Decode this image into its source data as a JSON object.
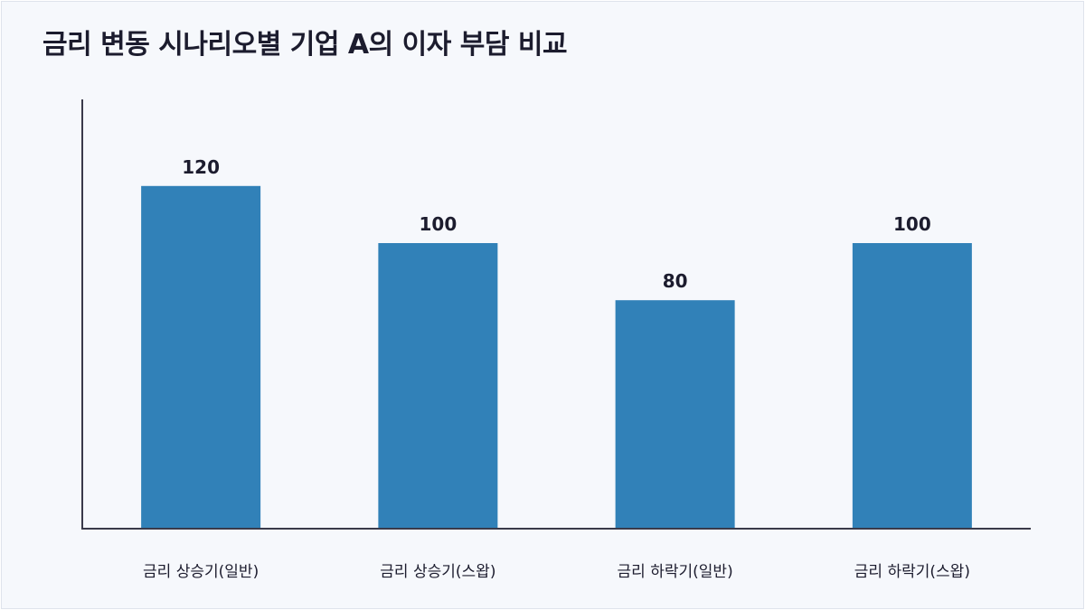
{
  "chart_data": {
    "type": "bar",
    "title": "금리 변동 시나리오별 기업 A의 이자 부담 비교",
    "categories": [
      "금리 상승기(일반)",
      "금리 상승기(스왑)",
      "금리 하락기(일반)",
      "금리 하락기(스왑)"
    ],
    "values": [
      120,
      100,
      80,
      100
    ],
    "xlabel": "",
    "ylabel": "",
    "ylim": [
      0,
      150
    ],
    "grid": false,
    "legend": "none",
    "bar_color": "#3181b8",
    "axis_color": "#3a3a4a"
  }
}
